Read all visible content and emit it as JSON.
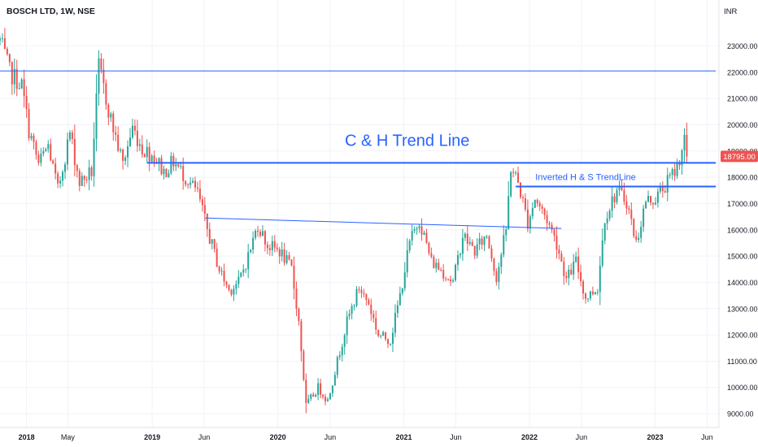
{
  "header": {
    "symbol_title": "BOSCH LTD, 1W, NSE"
  },
  "chart_data": {
    "type": "candlestick",
    "currency_label": "INR",
    "y_range": [
      8600,
      24500
    ],
    "y_ticks": [
      9000,
      10000,
      11000,
      12000,
      13000,
      14000,
      15000,
      16000,
      17000,
      18000,
      19000,
      20000,
      21000,
      22000,
      23000
    ],
    "y_tick_labels": [
      "9000.00",
      "10000.00",
      "11000.00",
      "12000.00",
      "13000.00",
      "14000.00",
      "15000.00",
      "16000.00",
      "17000.00",
      "18000.00",
      "19000.00",
      "20000.00",
      "21000.00",
      "22000.00",
      "23000.00"
    ],
    "x_range": [
      "2017-10-16",
      "2023-06-26"
    ],
    "x_ticks": [
      {
        "date": "2018-01-01",
        "label": "2018",
        "bold": true
      },
      {
        "date": "2018-05-01",
        "label": "May",
        "bold": false
      },
      {
        "date": "2019-01-01",
        "label": "2019",
        "bold": true
      },
      {
        "date": "2019-06-01",
        "label": "Jun",
        "bold": false
      },
      {
        "date": "2020-01-01",
        "label": "2020",
        "bold": true
      },
      {
        "date": "2020-06-01",
        "label": "Jun",
        "bold": false
      },
      {
        "date": "2021-01-01",
        "label": "2021",
        "bold": true
      },
      {
        "date": "2021-06-01",
        "label": "Jun",
        "bold": false
      },
      {
        "date": "2022-01-01",
        "label": "2022",
        "bold": true
      },
      {
        "date": "2022-06-01",
        "label": "Jun",
        "bold": false
      },
      {
        "date": "2023-01-01",
        "label": "2023",
        "bold": true
      },
      {
        "date": "2023-06-01",
        "label": "Jun",
        "bold": false
      }
    ],
    "last_price": 18795.0,
    "last_price_label": "18795.00",
    "colors": {
      "up": "#26a69a",
      "down": "#ef5350",
      "line": "#2962ff",
      "annotation": "#2962ff",
      "price_tag": "#ef5350"
    },
    "lines": [
      {
        "name": "resistance-22000",
        "from": [
          "2017-10-16",
          22050
        ],
        "to": [
          "2023-06-26",
          22050
        ],
        "weight": "thin"
      },
      {
        "name": "c-and-h-trend-line",
        "from": [
          "2018-12-17",
          18550
        ],
        "to": [
          "2023-06-26",
          18550
        ],
        "weight": "thick"
      },
      {
        "name": "inverted-h-and-s-trend-line",
        "from": [
          "2021-11-22",
          17650
        ],
        "to": [
          "2023-06-26",
          17650
        ],
        "weight": "thick"
      },
      {
        "name": "sloped-neckline",
        "from": [
          "2019-06-03",
          16450
        ],
        "to": [
          "2022-04-04",
          16050
        ],
        "weight": "thin"
      }
    ],
    "annotations": [
      {
        "text": "C & H Trend Line",
        "at": [
          "2021-01-11",
          19200
        ],
        "size": "large"
      },
      {
        "text": "Inverted H & S TrendLine",
        "at": [
          "2022-06-13",
          17900
        ],
        "size": "small"
      }
    ],
    "candle_anchors": [
      [
        "2017-10-16",
        23200
      ],
      [
        "2017-11-13",
        22000
      ],
      [
        "2017-12-18",
        21500
      ],
      [
        "2018-01-08",
        19800
      ],
      [
        "2018-02-05",
        18500
      ],
      [
        "2018-03-05",
        19200
      ],
      [
        "2018-04-02",
        17500
      ],
      [
        "2018-05-07",
        19700
      ],
      [
        "2018-06-04",
        17800
      ],
      [
        "2018-07-09",
        18200
      ],
      [
        "2018-07-30",
        22200
      ],
      [
        "2018-09-03",
        20200
      ],
      [
        "2018-10-08",
        18500
      ],
      [
        "2018-11-05",
        19900
      ],
      [
        "2018-12-03",
        19100
      ],
      [
        "2019-01-07",
        18800
      ],
      [
        "2019-02-04",
        18200
      ],
      [
        "2019-03-04",
        18600
      ],
      [
        "2019-04-08",
        18000
      ],
      [
        "2019-05-13",
        17400
      ],
      [
        "2019-06-10",
        16000
      ],
      [
        "2019-07-15",
        14500
      ],
      [
        "2019-08-12",
        13700
      ],
      [
        "2019-09-09",
        14000
      ],
      [
        "2019-10-07",
        15000
      ],
      [
        "2019-11-04",
        16200
      ],
      [
        "2019-12-02",
        15400
      ],
      [
        "2020-01-06",
        15200
      ],
      [
        "2020-02-10",
        14500
      ],
      [
        "2020-03-02",
        12500
      ],
      [
        "2020-03-23",
        9300
      ],
      [
        "2020-04-27",
        10000
      ],
      [
        "2020-05-25",
        9500
      ],
      [
        "2020-06-22",
        11000
      ],
      [
        "2020-07-20",
        12500
      ],
      [
        "2020-08-24",
        13800
      ],
      [
        "2020-09-21",
        13200
      ],
      [
        "2020-10-19",
        12000
      ],
      [
        "2020-11-23",
        11800
      ],
      [
        "2020-12-21",
        13500
      ],
      [
        "2021-01-18",
        15500
      ],
      [
        "2021-02-15",
        16400
      ],
      [
        "2021-03-22",
        14800
      ],
      [
        "2021-04-26",
        14400
      ],
      [
        "2021-05-24",
        14000
      ],
      [
        "2021-06-21",
        15800
      ],
      [
        "2021-07-26",
        15200
      ],
      [
        "2021-08-30",
        15800
      ],
      [
        "2021-09-27",
        14200
      ],
      [
        "2021-10-25",
        16000
      ],
      [
        "2021-11-08",
        18400
      ],
      [
        "2021-11-29",
        17800
      ],
      [
        "2021-12-27",
        16300
      ],
      [
        "2022-01-17",
        17200
      ],
      [
        "2022-02-21",
        16400
      ],
      [
        "2022-03-21",
        15500
      ],
      [
        "2022-04-18",
        14100
      ],
      [
        "2022-05-16",
        14800
      ],
      [
        "2022-06-13",
        13400
      ],
      [
        "2022-07-18",
        13800
      ],
      [
        "2022-08-08",
        16500
      ],
      [
        "2022-09-12",
        17500
      ],
      [
        "2022-10-10",
        17100
      ],
      [
        "2022-11-07",
        15500
      ],
      [
        "2022-12-05",
        17100
      ],
      [
        "2023-01-02",
        17200
      ],
      [
        "2023-02-06",
        17800
      ],
      [
        "2023-03-06",
        18400
      ],
      [
        "2023-03-20",
        19100
      ],
      [
        "2023-03-27",
        19450
      ],
      [
        "2023-04-03",
        18795
      ]
    ]
  }
}
